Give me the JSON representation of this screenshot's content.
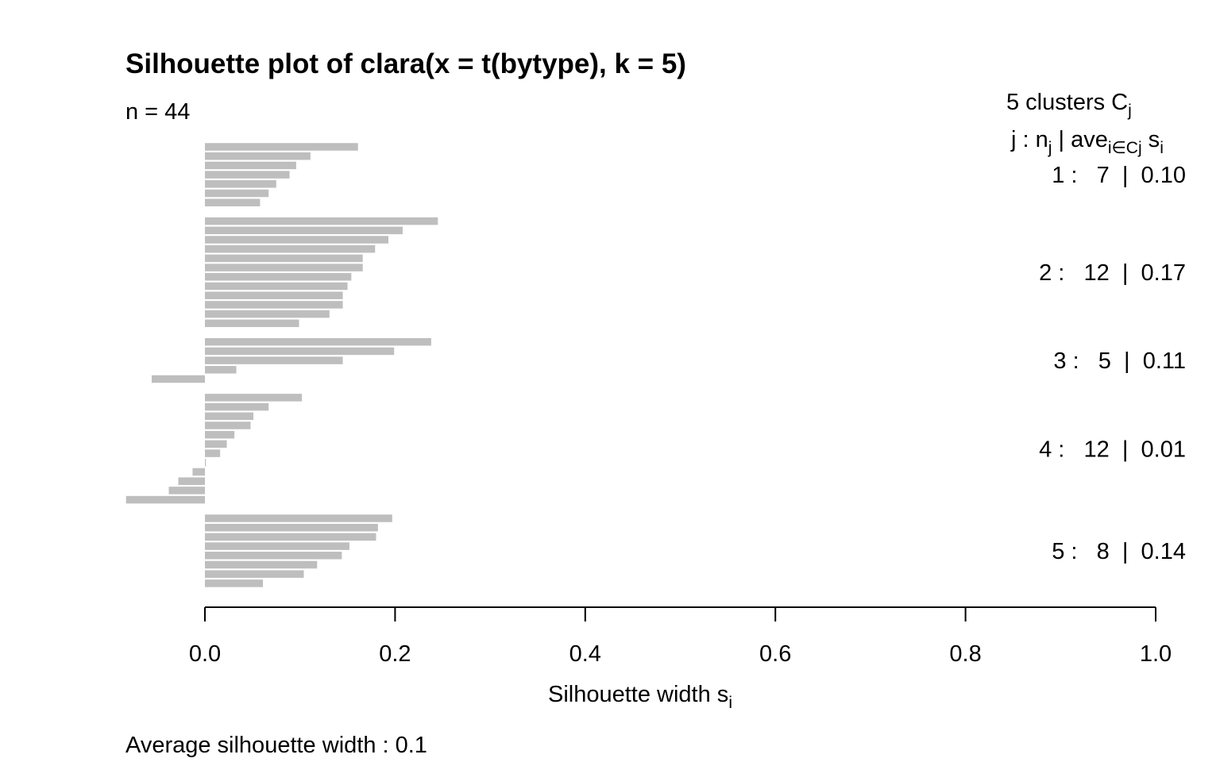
{
  "chart_data": {
    "type": "silhouette",
    "title": "Silhouette plot of clara(x = t(bytype), k = 5)",
    "subtitle": "n = 44",
    "x_label": [
      "Silhouette width s",
      "i"
    ],
    "footer": "Average silhouette width :  0.1",
    "legend_title": [
      "5  clusters  C",
      "j"
    ],
    "legend_header": [
      "j :  n",
      "j",
      " | ave",
      "i∈Cj",
      "  s",
      "i"
    ],
    "cluster_labels": [
      "1 :   7  |  0.10",
      "2 :   12  |  0.17",
      "3 :   5  |  0.11",
      "4 :   12  |  0.01",
      "5 :   8  |  0.14"
    ],
    "color": "#bebebe",
    "clusters": [
      {
        "values": [
          0.161,
          0.111,
          0.096,
          0.089,
          0.075,
          0.067,
          0.058
        ]
      },
      {
        "values": [
          0.245,
          0.208,
          0.193,
          0.179,
          0.166,
          0.166,
          0.154,
          0.15,
          0.145,
          0.145,
          0.131,
          0.099
        ]
      },
      {
        "values": [
          0.238,
          0.199,
          0.145,
          0.033,
          -0.056
        ]
      },
      {
        "values": [
          0.102,
          0.067,
          0.051,
          0.048,
          0.031,
          0.023,
          0.016,
          0.001,
          -0.013,
          -0.028,
          -0.038,
          -0.083
        ]
      },
      {
        "values": [
          0.197,
          0.182,
          0.18,
          0.152,
          0.144,
          0.118,
          0.104,
          0.061
        ]
      }
    ],
    "xlim": [
      0,
      1
    ],
    "xticks": [
      {
        "value": 0,
        "label": "0.0"
      },
      0.2,
      0.4,
      0.6,
      0.8,
      {
        "value": 1,
        "label": "1.0"
      }
    ]
  }
}
